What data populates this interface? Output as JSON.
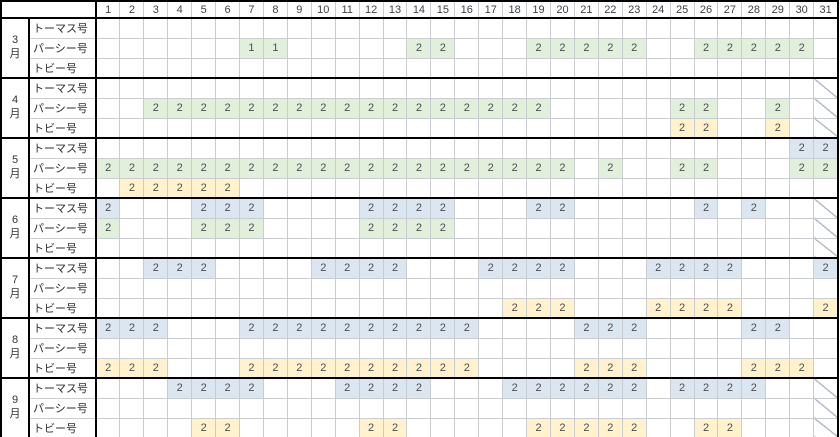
{
  "table": {
    "days": [
      1,
      2,
      3,
      4,
      5,
      6,
      7,
      8,
      9,
      10,
      11,
      12,
      13,
      14,
      15,
      16,
      17,
      18,
      19,
      20,
      21,
      22,
      23,
      24,
      25,
      26,
      27,
      28,
      29,
      30,
      31
    ],
    "colors": {
      "blue": "#dce6f1",
      "green": "#e2efda",
      "yellow": "#fff2cc",
      "diagonal_line": "#b4bac6",
      "grid_line": "#c9cdd2",
      "frame": "#000000"
    },
    "months": [
      {
        "num": "3",
        "unit": "月",
        "diagonal_days": [],
        "rows": [
          {
            "train": "トーマス号",
            "fill": "blue",
            "cells": []
          },
          {
            "train": "パーシー号",
            "fill": "green",
            "cells": [
              [
                7,
                "1"
              ],
              [
                8,
                "1"
              ],
              [
                14,
                "2"
              ],
              [
                15,
                "2"
              ],
              [
                19,
                "2"
              ],
              [
                20,
                "2"
              ],
              [
                21,
                "2"
              ],
              [
                22,
                "2"
              ],
              [
                23,
                "2"
              ],
              [
                26,
                "2"
              ],
              [
                27,
                "2"
              ],
              [
                28,
                "2"
              ],
              [
                29,
                "2"
              ],
              [
                30,
                "2"
              ]
            ]
          },
          {
            "train": "トビー号",
            "fill": "yellow",
            "cells": []
          }
        ]
      },
      {
        "num": "4",
        "unit": "月",
        "diagonal_days": [
          31
        ],
        "rows": [
          {
            "train": "トーマス号",
            "fill": "blue",
            "cells": []
          },
          {
            "train": "パーシー号",
            "fill": "green",
            "cells": [
              [
                3,
                "2"
              ],
              [
                4,
                "2"
              ],
              [
                5,
                "2"
              ],
              [
                6,
                "2"
              ],
              [
                7,
                "2"
              ],
              [
                8,
                "2"
              ],
              [
                9,
                "2"
              ],
              [
                10,
                "2"
              ],
              [
                11,
                "2"
              ],
              [
                12,
                "2"
              ],
              [
                13,
                "2"
              ],
              [
                14,
                "2"
              ],
              [
                15,
                "2"
              ],
              [
                16,
                "2"
              ],
              [
                17,
                "2"
              ],
              [
                18,
                "2"
              ],
              [
                19,
                "2"
              ],
              [
                25,
                "2"
              ],
              [
                26,
                "2"
              ],
              [
                29,
                "2"
              ]
            ]
          },
          {
            "train": "トビー号",
            "fill": "yellow",
            "cells": [
              [
                25,
                "2"
              ],
              [
                26,
                "2"
              ],
              [
                29,
                "2"
              ]
            ]
          }
        ]
      },
      {
        "num": "5",
        "unit": "月",
        "diagonal_days": [],
        "rows": [
          {
            "train": "トーマス号",
            "fill": "blue",
            "cells": [
              [
                30,
                "2"
              ],
              [
                31,
                "2"
              ]
            ]
          },
          {
            "train": "パーシー号",
            "fill": "green",
            "cells": [
              [
                1,
                "2"
              ],
              [
                2,
                "2"
              ],
              [
                3,
                "2"
              ],
              [
                4,
                "2"
              ],
              [
                5,
                "2"
              ],
              [
                6,
                "2"
              ],
              [
                7,
                "2"
              ],
              [
                8,
                "2"
              ],
              [
                9,
                "2"
              ],
              [
                10,
                "2"
              ],
              [
                11,
                "2"
              ],
              [
                12,
                "2"
              ],
              [
                13,
                "2"
              ],
              [
                14,
                "2"
              ],
              [
                15,
                "2"
              ],
              [
                16,
                "2"
              ],
              [
                17,
                "2"
              ],
              [
                18,
                "2"
              ],
              [
                19,
                "2"
              ],
              [
                20,
                "2"
              ],
              [
                22,
                "2"
              ],
              [
                25,
                "2"
              ],
              [
                26,
                "2"
              ],
              [
                30,
                "2"
              ],
              [
                31,
                "2"
              ]
            ]
          },
          {
            "train": "トビー号",
            "fill": "yellow",
            "cells": [
              [
                2,
                "2"
              ],
              [
                3,
                "2"
              ],
              [
                4,
                "2"
              ],
              [
                5,
                "2"
              ],
              [
                6,
                "2"
              ]
            ]
          }
        ]
      },
      {
        "num": "6",
        "unit": "月",
        "diagonal_days": [
          31
        ],
        "rows": [
          {
            "train": "トーマス号",
            "fill": "blue",
            "cells": [
              [
                1,
                "2"
              ],
              [
                5,
                "2"
              ],
              [
                6,
                "2"
              ],
              [
                7,
                "2"
              ],
              [
                12,
                "2"
              ],
              [
                13,
                "2"
              ],
              [
                14,
                "2"
              ],
              [
                15,
                "2"
              ],
              [
                19,
                "2"
              ],
              [
                20,
                "2"
              ],
              [
                26,
                "2"
              ],
              [
                28,
                "2"
              ]
            ]
          },
          {
            "train": "パーシー号",
            "fill": "green",
            "cells": [
              [
                1,
                "2"
              ],
              [
                5,
                "2"
              ],
              [
                6,
                "2"
              ],
              [
                7,
                "2"
              ],
              [
                12,
                "2"
              ],
              [
                13,
                "2"
              ],
              [
                14,
                "2"
              ],
              [
                15,
                "2"
              ]
            ]
          },
          {
            "train": "トビー号",
            "fill": "yellow",
            "cells": []
          }
        ]
      },
      {
        "num": "7",
        "unit": "月",
        "diagonal_days": [],
        "rows": [
          {
            "train": "トーマス号",
            "fill": "blue",
            "cells": [
              [
                3,
                "2"
              ],
              [
                4,
                "2"
              ],
              [
                5,
                "2"
              ],
              [
                10,
                "2"
              ],
              [
                11,
                "2"
              ],
              [
                12,
                "2"
              ],
              [
                13,
                "2"
              ],
              [
                17,
                "2"
              ],
              [
                18,
                "2"
              ],
              [
                19,
                "2"
              ],
              [
                20,
                "2"
              ],
              [
                24,
                "2"
              ],
              [
                25,
                "2"
              ],
              [
                26,
                "2"
              ],
              [
                27,
                "2"
              ],
              [
                31,
                "2"
              ]
            ]
          },
          {
            "train": "パーシー号",
            "fill": "green",
            "cells": []
          },
          {
            "train": "トビー号",
            "fill": "yellow",
            "cells": [
              [
                18,
                "2"
              ],
              [
                19,
                "2"
              ],
              [
                20,
                "2"
              ],
              [
                24,
                "2"
              ],
              [
                25,
                "2"
              ],
              [
                26,
                "2"
              ],
              [
                27,
                "2"
              ],
              [
                31,
                "2"
              ]
            ]
          }
        ]
      },
      {
        "num": "8",
        "unit": "月",
        "diagonal_days": [],
        "rows": [
          {
            "train": "トーマス号",
            "fill": "blue",
            "cells": [
              [
                1,
                "2"
              ],
              [
                2,
                "2"
              ],
              [
                3,
                "2"
              ],
              [
                7,
                "2"
              ],
              [
                8,
                "2"
              ],
              [
                9,
                "2"
              ],
              [
                10,
                "2"
              ],
              [
                11,
                "2"
              ],
              [
                12,
                "2"
              ],
              [
                13,
                "2"
              ],
              [
                14,
                "2"
              ],
              [
                15,
                "2"
              ],
              [
                16,
                "2"
              ],
              [
                21,
                "2"
              ],
              [
                22,
                "2"
              ],
              [
                23,
                "2"
              ],
              [
                28,
                "2"
              ],
              [
                29,
                "2"
              ]
            ]
          },
          {
            "train": "パーシー号",
            "fill": "green",
            "cells": []
          },
          {
            "train": "トビー号",
            "fill": "yellow",
            "cells": [
              [
                1,
                "2"
              ],
              [
                2,
                "2"
              ],
              [
                3,
                "2"
              ],
              [
                7,
                "2"
              ],
              [
                8,
                "2"
              ],
              [
                9,
                "2"
              ],
              [
                10,
                "2"
              ],
              [
                11,
                "2"
              ],
              [
                12,
                "2"
              ],
              [
                13,
                "2"
              ],
              [
                14,
                "2"
              ],
              [
                15,
                "2"
              ],
              [
                16,
                "2"
              ],
              [
                21,
                "2"
              ],
              [
                22,
                "2"
              ],
              [
                23,
                "2"
              ],
              [
                28,
                "2"
              ],
              [
                29,
                "2"
              ],
              [
                30,
                "2"
              ]
            ]
          }
        ]
      },
      {
        "num": "9",
        "unit": "月",
        "diagonal_days": [
          31
        ],
        "rows": [
          {
            "train": "トーマス号",
            "fill": "blue",
            "cells": [
              [
                4,
                "2"
              ],
              [
                5,
                "2"
              ],
              [
                6,
                "2"
              ],
              [
                7,
                "2"
              ],
              [
                11,
                "2"
              ],
              [
                12,
                "2"
              ],
              [
                13,
                "2"
              ],
              [
                14,
                "2"
              ],
              [
                18,
                "2"
              ],
              [
                19,
                "2"
              ],
              [
                20,
                "2"
              ],
              [
                21,
                "2"
              ],
              [
                22,
                "2"
              ],
              [
                23,
                "2"
              ],
              [
                25,
                "2"
              ],
              [
                26,
                "2"
              ],
              [
                27,
                "2"
              ],
              [
                28,
                "2"
              ]
            ]
          },
          {
            "train": "パーシー号",
            "fill": "green",
            "cells": []
          },
          {
            "train": "トビー号",
            "fill": "yellow",
            "cells": [
              [
                5,
                "2"
              ],
              [
                6,
                "2"
              ],
              [
                12,
                "2"
              ],
              [
                13,
                "2"
              ],
              [
                19,
                "2"
              ],
              [
                20,
                "2"
              ],
              [
                21,
                "2"
              ],
              [
                22,
                "2"
              ],
              [
                23,
                "2"
              ],
              [
                26,
                "2"
              ],
              [
                27,
                "2"
              ]
            ]
          }
        ]
      }
    ]
  }
}
